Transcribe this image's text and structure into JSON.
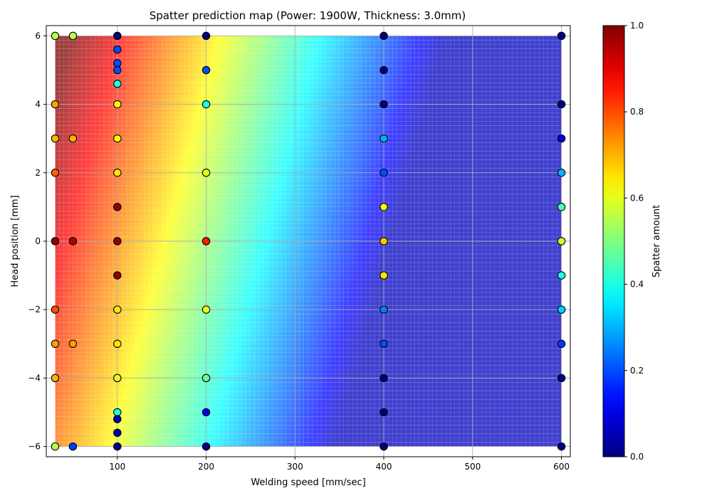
{
  "chart_data": {
    "type": "heatmap",
    "title": "Spatter prediction map (Power: 1900W, Thickness: 3.0mm)",
    "xlabel": "Welding speed [mm/sec]",
    "ylabel": "Head position [mm]",
    "xlim": [
      20,
      610
    ],
    "ylim": [
      -6.3,
      6.3
    ],
    "x_ticks": [
      100,
      200,
      300,
      400,
      500,
      600
    ],
    "y_ticks": [
      -6,
      -4,
      -2,
      0,
      2,
      4,
      6
    ],
    "x_tick_labels": [
      "100",
      "200",
      "300",
      "400",
      "500",
      "600"
    ],
    "y_tick_labels": [
      "−6",
      "−4",
      "−2",
      "0",
      "2",
      "4",
      "6"
    ],
    "grid": true,
    "colormap": "jet",
    "colorbar": {
      "label": "Spatter amount",
      "range": [
        0,
        1
      ],
      "ticks": [
        0,
        0.2,
        0.4,
        0.6,
        0.8,
        1.0
      ],
      "tick_labels": [
        "0.0",
        "0.2",
        "0.4",
        "0.6",
        "0.8",
        "1.0"
      ]
    },
    "surface": {
      "x_range": [
        30,
        600
      ],
      "y_range": [
        -6,
        6
      ],
      "model": "value(x,y) = clip(0.90 - 0.00222*(x-30) + 0.0227*y, 0.06, 1.0)",
      "alpha": 0.75,
      "grid_lines_color": "#ffffff"
    },
    "points": [
      {
        "x": 30,
        "y": 6,
        "value": 0.55
      },
      {
        "x": 50,
        "y": 6,
        "value": 0.55
      },
      {
        "x": 100,
        "y": 6,
        "value": 0.0
      },
      {
        "x": 200,
        "y": 6,
        "value": 0.0
      },
      {
        "x": 400,
        "y": 6,
        "value": 0.0
      },
      {
        "x": 600,
        "y": 6,
        "value": 0.0
      },
      {
        "x": 100,
        "y": 5.6,
        "value": 0.2
      },
      {
        "x": 100,
        "y": 5.2,
        "value": 0.2
      },
      {
        "x": 100,
        "y": 5,
        "value": 0.2
      },
      {
        "x": 200,
        "y": 5,
        "value": 0.2
      },
      {
        "x": 400,
        "y": 5,
        "value": 0.0
      },
      {
        "x": 100,
        "y": 4.6,
        "value": 0.4
      },
      {
        "x": 30,
        "y": 4,
        "value": 0.72
      },
      {
        "x": 100,
        "y": 4,
        "value": 0.63
      },
      {
        "x": 200,
        "y": 4,
        "value": 0.4
      },
      {
        "x": 400,
        "y": 4,
        "value": 0.0
      },
      {
        "x": 600,
        "y": 4,
        "value": 0.0
      },
      {
        "x": 30,
        "y": 3,
        "value": 0.7
      },
      {
        "x": 50,
        "y": 3,
        "value": 0.7
      },
      {
        "x": 100,
        "y": 3,
        "value": 0.63
      },
      {
        "x": 400,
        "y": 3,
        "value": 0.3
      },
      {
        "x": 600,
        "y": 3,
        "value": 0.1
      },
      {
        "x": 30,
        "y": 2,
        "value": 0.78
      },
      {
        "x": 100,
        "y": 2,
        "value": 0.65
      },
      {
        "x": 200,
        "y": 2,
        "value": 0.6
      },
      {
        "x": 400,
        "y": 2,
        "value": 0.2
      },
      {
        "x": 600,
        "y": 2,
        "value": 0.3
      },
      {
        "x": 100,
        "y": 1,
        "value": 0.98
      },
      {
        "x": 400,
        "y": 1,
        "value": 0.62
      },
      {
        "x": 600,
        "y": 1,
        "value": 0.45
      },
      {
        "x": 30,
        "y": 0,
        "value": 0.98
      },
      {
        "x": 50,
        "y": 0,
        "value": 0.95
      },
      {
        "x": 100,
        "y": 0,
        "value": 0.98
      },
      {
        "x": 200,
        "y": 0,
        "value": 0.85
      },
      {
        "x": 400,
        "y": 0,
        "value": 0.68
      },
      {
        "x": 600,
        "y": 0,
        "value": 0.58
      },
      {
        "x": 100,
        "y": -1,
        "value": 0.98
      },
      {
        "x": 400,
        "y": -1,
        "value": 0.65
      },
      {
        "x": 600,
        "y": -1,
        "value": 0.4
      },
      {
        "x": 30,
        "y": -2,
        "value": 0.8
      },
      {
        "x": 100,
        "y": -2,
        "value": 0.65
      },
      {
        "x": 200,
        "y": -2,
        "value": 0.6
      },
      {
        "x": 400,
        "y": -2,
        "value": 0.25
      },
      {
        "x": 600,
        "y": -2,
        "value": 0.33
      },
      {
        "x": 30,
        "y": -3,
        "value": 0.72
      },
      {
        "x": 50,
        "y": -3,
        "value": 0.72
      },
      {
        "x": 100,
        "y": -3,
        "value": 0.65
      },
      {
        "x": 400,
        "y": -3,
        "value": 0.2
      },
      {
        "x": 600,
        "y": -3,
        "value": 0.18
      },
      {
        "x": 30,
        "y": -4,
        "value": 0.7
      },
      {
        "x": 100,
        "y": -4,
        "value": 0.6
      },
      {
        "x": 200,
        "y": -4,
        "value": 0.48
      },
      {
        "x": 400,
        "y": -4,
        "value": 0.0
      },
      {
        "x": 600,
        "y": -4,
        "value": 0.0
      },
      {
        "x": 100,
        "y": -5,
        "value": 0.4
      },
      {
        "x": 200,
        "y": -5,
        "value": 0.1
      },
      {
        "x": 400,
        "y": -5,
        "value": 0.0
      },
      {
        "x": 100,
        "y": -5.2,
        "value": 0.05
      },
      {
        "x": 100,
        "y": -5.6,
        "value": 0.05
      },
      {
        "x": 30,
        "y": -6,
        "value": 0.55
      },
      {
        "x": 50,
        "y": -6,
        "value": 0.18
      },
      {
        "x": 100,
        "y": -6,
        "value": 0.0
      },
      {
        "x": 200,
        "y": -6,
        "value": 0.0
      },
      {
        "x": 400,
        "y": -6,
        "value": 0.0
      },
      {
        "x": 600,
        "y": -6,
        "value": 0.0
      }
    ]
  }
}
